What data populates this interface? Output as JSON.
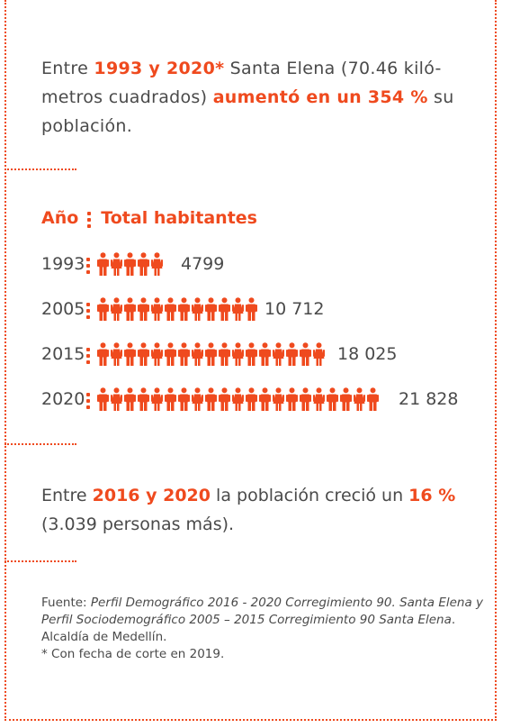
{
  "intro": {
    "t1": "Entre ",
    "b1": "1993 y 2020*",
    "t2": " Santa Elena (70.46 kiló-metros cuadrados) ",
    "b2": "aumentó en un 354 %",
    "t3": " su población."
  },
  "chart_data": {
    "type": "pictograph",
    "header_year": "Año",
    "header_total": "Total habitantes",
    "categories": [
      "1993",
      "2005",
      "2015",
      "2020"
    ],
    "values": [
      4799,
      10712,
      18025,
      21828
    ],
    "value_labels": [
      "4799",
      "10 712",
      "18 025",
      "21 828"
    ],
    "icon_counts": [
      5,
      12,
      17,
      21
    ],
    "icon": "person-icon",
    "color": "#ef4a1e"
  },
  "growth": {
    "t1": "Entre ",
    "b1": "2016 y 2020",
    "t2": " la población creció un ",
    "b2": "16 %",
    "t3": " (3.039 personas más)."
  },
  "source": {
    "label": "Fuente: ",
    "i1": "Perfil Demográfico 2016 - 2020 Corregimiento 90. Santa Elena y Perfil Sociodemográfico 2005 – 2015 Corregimiento 90 Santa Elena",
    "t1": ". Alcaldía de Medellín.",
    "note": "* Con fecha de corte en 2019."
  },
  "colors": {
    "accent": "#ef4a1e",
    "text": "#4a4a4a"
  }
}
